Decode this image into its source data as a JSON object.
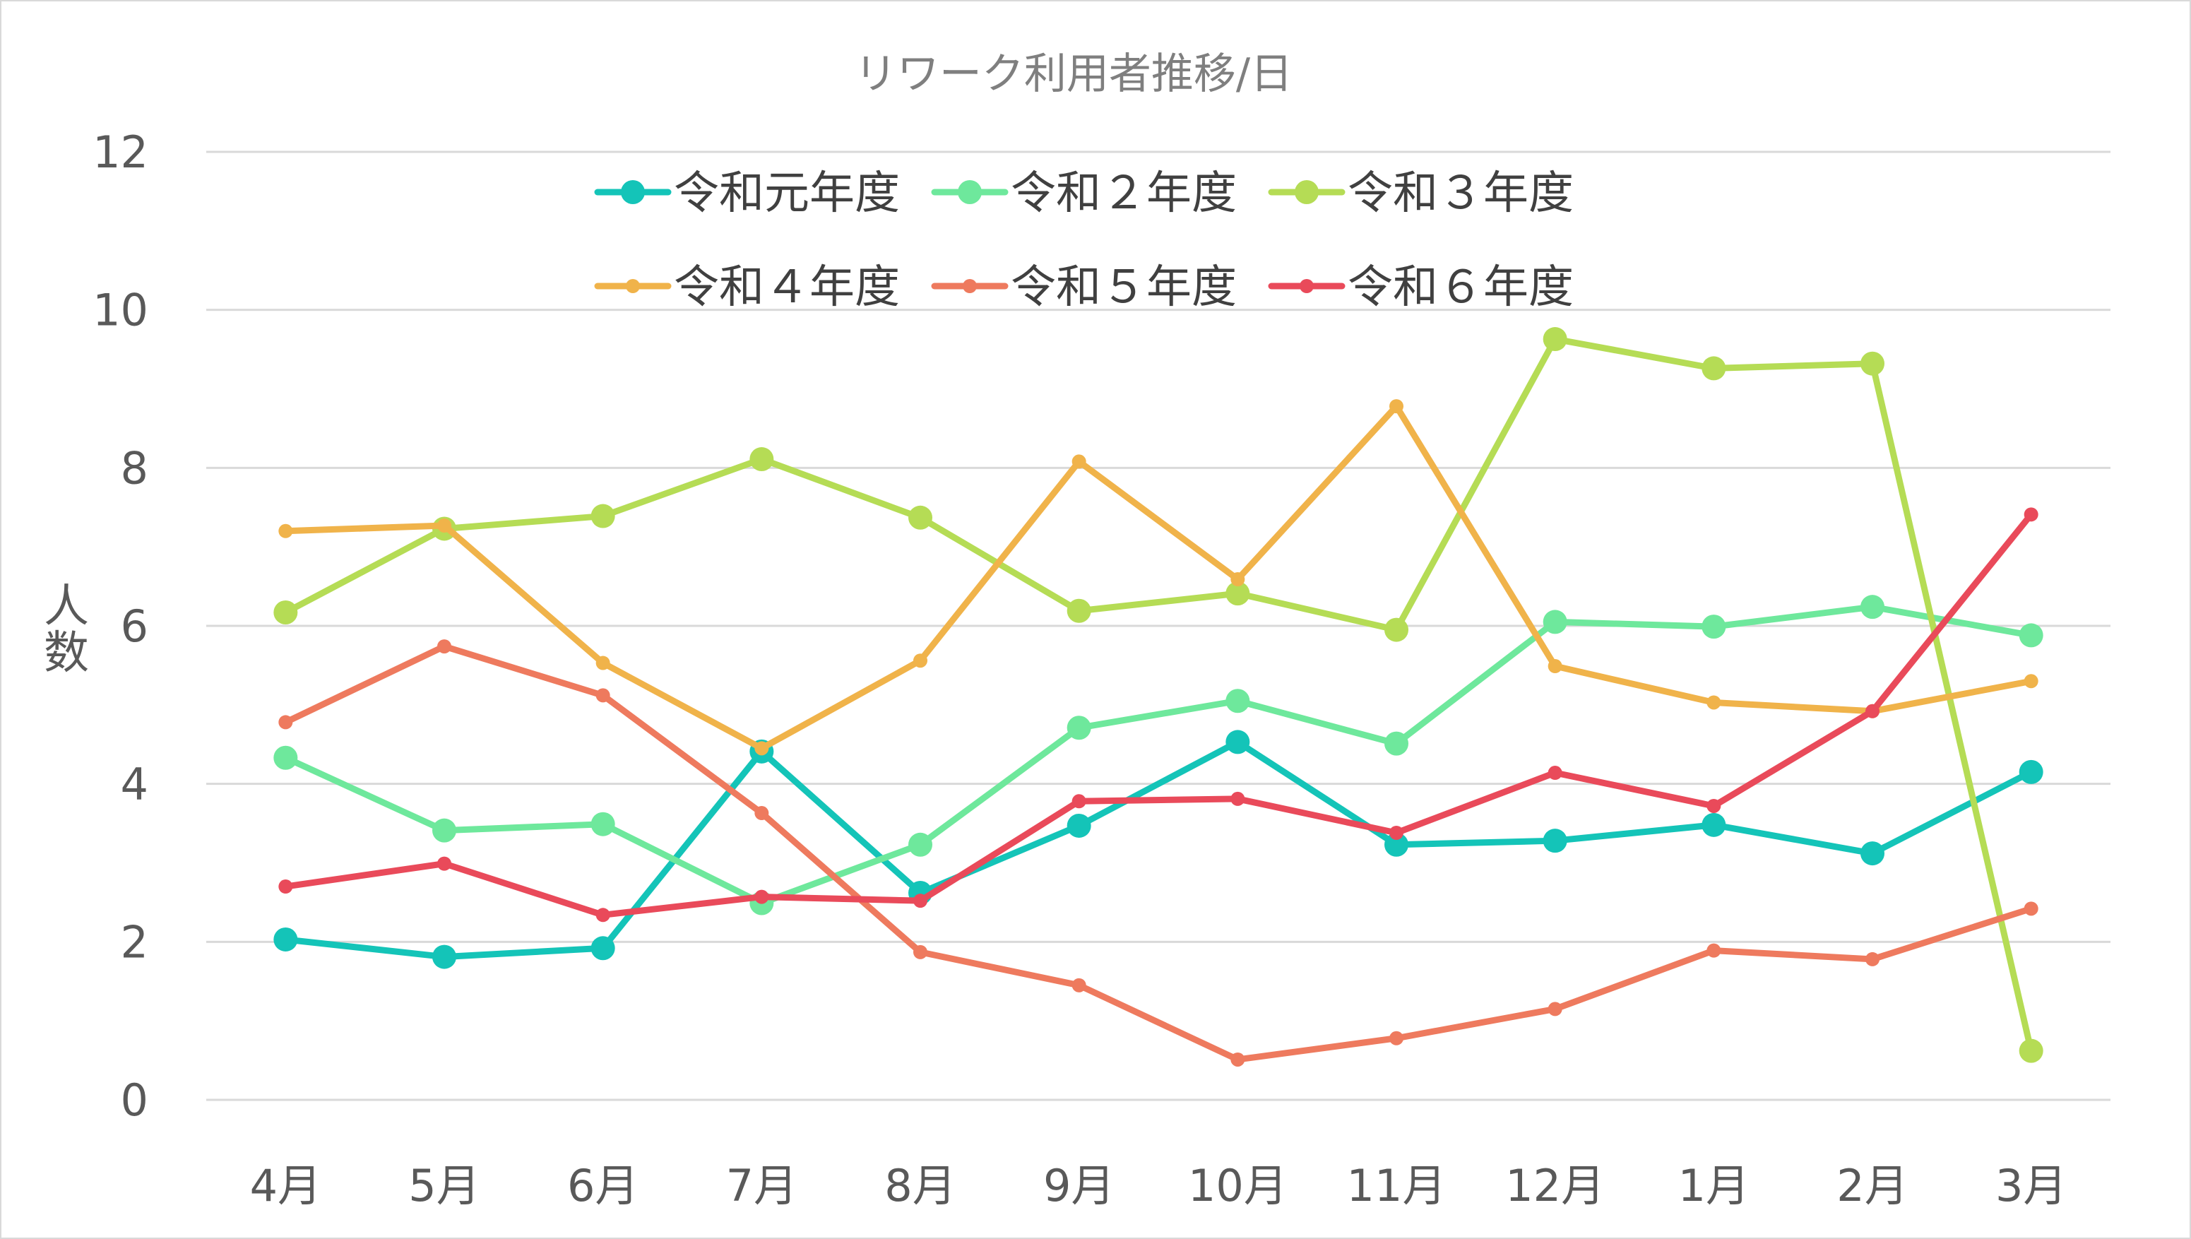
{
  "chart_data": {
    "type": "line",
    "title": "リワーク利用者推移/日",
    "ylabel": "人数",
    "xlabel": "",
    "categories": [
      "4月",
      "5月",
      "6月",
      "7月",
      "8月",
      "9月",
      "10月",
      "11月",
      "12月",
      "1月",
      "2月",
      "3月"
    ],
    "ylim": [
      0,
      12
    ],
    "yticks": [
      0,
      2,
      4,
      6,
      8,
      10,
      12
    ],
    "grid": true,
    "legend_position": "top",
    "series": [
      {
        "name": "令和元年度",
        "color": "#14c4b8",
        "marker": "large",
        "values": [
          2.03,
          1.81,
          1.92,
          4.41,
          2.62,
          3.47,
          4.53,
          3.23,
          3.28,
          3.48,
          3.12,
          4.15
        ]
      },
      {
        "name": "令和２年度",
        "color": "#6ee89c",
        "marker": "large",
        "values": [
          4.33,
          3.41,
          3.49,
          2.49,
          3.23,
          4.71,
          5.05,
          4.51,
          6.05,
          5.99,
          6.24,
          5.88
        ]
      },
      {
        "name": "令和３年度",
        "color": "#b5dc55",
        "marker": "large",
        "values": [
          6.17,
          7.23,
          7.39,
          8.11,
          7.37,
          6.19,
          6.41,
          5.95,
          9.63,
          9.26,
          9.32,
          0.62
        ]
      },
      {
        "name": "令和４年度",
        "color": "#f0b34a",
        "marker": "small",
        "values": [
          7.2,
          7.27,
          5.53,
          4.45,
          5.56,
          8.08,
          6.59,
          8.78,
          5.49,
          5.03,
          4.92,
          5.3
        ]
      },
      {
        "name": "令和５年度",
        "color": "#ee7a5e",
        "marker": "small",
        "values": [
          4.78,
          5.74,
          5.12,
          3.63,
          1.87,
          1.45,
          0.51,
          0.78,
          1.15,
          1.89,
          1.78,
          2.42
        ]
      },
      {
        "name": "令和６年度",
        "color": "#e94a5a",
        "marker": "small",
        "values": [
          2.7,
          2.99,
          2.34,
          2.57,
          2.52,
          3.78,
          3.81,
          3.38,
          4.14,
          3.72,
          4.92,
          7.41
        ]
      }
    ]
  }
}
